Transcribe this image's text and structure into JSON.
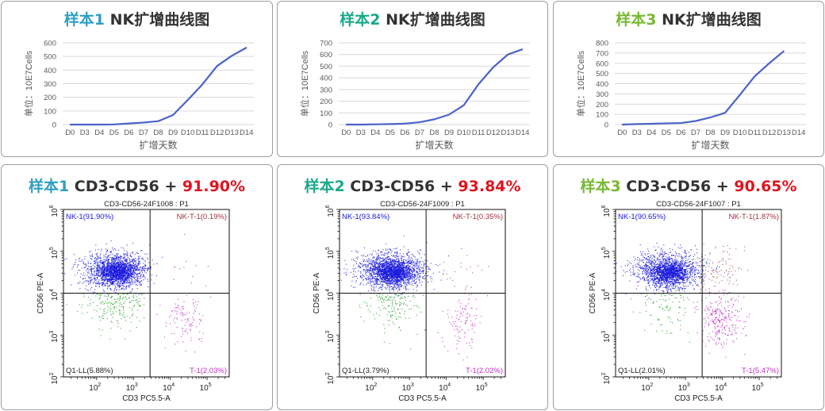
{
  "line_panels": [
    {
      "sample_label": "样本1",
      "title_rest": " NK扩增曲线图",
      "sample_color": "#2e9fc3"
    },
    {
      "sample_label": "样本2",
      "title_rest": " NK扩增曲线图",
      "sample_color": "#1aa88a"
    },
    {
      "sample_label": "样本3",
      "title_rest": " NK扩增曲线图",
      "sample_color": "#78b833"
    }
  ],
  "flow_panels": [
    {
      "sample_label": "样本1",
      "marker_text": " CD3-CD56 + ",
      "percent": "91.90%",
      "sample_color": "#2e9fc3"
    },
    {
      "sample_label": "样本2",
      "marker_text": " CD3-CD56 + ",
      "percent": "93.84%",
      "sample_color": "#1aa88a"
    },
    {
      "sample_label": "样本3",
      "marker_text": " CD3-CD56 + ",
      "percent": "90.65%",
      "sample_color": "#78b833"
    }
  ],
  "colors": {
    "line": "#4a63c8",
    "grid": "#d9d9d9",
    "percent_red": "#e0141e",
    "nk": "#1a1adc",
    "nkt": "#a0323c",
    "t": "#c030c0",
    "ll": "#3aa83a"
  },
  "chart_data": [
    {
      "type": "line",
      "title": "样本1 NK扩增曲线图",
      "xlabel": "扩增天数",
      "ylabel": "单位：10E7Cells",
      "categories": [
        "D0",
        "D3",
        "D4",
        "D5",
        "D6",
        "D7",
        "D8",
        "D9",
        "D10",
        "D11",
        "D12",
        "D13",
        "D14"
      ],
      "values": [
        0,
        0,
        0,
        1,
        8,
        15,
        25,
        70,
        180,
        295,
        430,
        505,
        565
      ],
      "ylim": [
        0,
        600
      ],
      "yticks": [
        0,
        100,
        200,
        300,
        400,
        500,
        600
      ],
      "grid": true
    },
    {
      "type": "line",
      "title": "样本2 NK扩增曲线图",
      "xlabel": "扩增天数",
      "ylabel": "单位：10E7Cells",
      "categories": [
        "D0",
        "D3",
        "D4",
        "D5",
        "D6",
        "D7",
        "D8",
        "D9",
        "D10",
        "D11",
        "D12",
        "D13",
        "D14"
      ],
      "values": [
        0,
        0,
        2,
        4,
        8,
        20,
        45,
        85,
        165,
        345,
        490,
        600,
        645
      ],
      "ylim": [
        0,
        700
      ],
      "yticks": [
        0,
        100,
        200,
        300,
        400,
        500,
        600,
        700
      ],
      "grid": true
    },
    {
      "type": "line",
      "title": "样本3 NK扩增曲线图",
      "xlabel": "扩增天数",
      "ylabel": "单位：10E7Cells",
      "categories": [
        "D0",
        "D3",
        "D4",
        "D5",
        "D6",
        "D7",
        "D8",
        "D9",
        "D10",
        "D11",
        "D12",
        "D13",
        "D14"
      ],
      "values": [
        0,
        5,
        8,
        12,
        15,
        35,
        70,
        115,
        290,
        470,
        600,
        720,
        null
      ],
      "ylim": [
        0,
        800
      ],
      "yticks": [
        0,
        100,
        200,
        300,
        400,
        500,
        600,
        700,
        800
      ],
      "grid": true
    },
    {
      "type": "scatter",
      "title": "CD3-CD56-24F1008 : P1",
      "xlabel": "CD3 PC5.5-A",
      "ylabel": "CD56 PE-A",
      "x_scale": "log",
      "y_scale": "log",
      "x_ticks": [
        "10^2",
        "10^3",
        "10^4",
        "10^5"
      ],
      "y_ticks": [
        "10^2",
        "10^3",
        "10^4",
        "10^5",
        "10^6"
      ],
      "quadrants": [
        {
          "name": "NK-1",
          "percent": "91.90%",
          "position": "top-left"
        },
        {
          "name": "NK-T-1",
          "percent": "0.19%",
          "position": "top-right"
        },
        {
          "name": "Q1-LL",
          "percent": "5.88%",
          "position": "bottom-left"
        },
        {
          "name": "T-1",
          "percent": "2.03%",
          "position": "bottom-right"
        }
      ]
    },
    {
      "type": "scatter",
      "title": "CD3-CD56-24F1009 : P1",
      "xlabel": "CD3 PC5.5-A",
      "ylabel": "CD56 PE-A",
      "x_scale": "log",
      "y_scale": "log",
      "x_ticks": [
        "10^2",
        "10^3",
        "10^4",
        "10^5"
      ],
      "y_ticks": [
        "10^2",
        "10^3",
        "10^4",
        "10^5",
        "10^6"
      ],
      "quadrants": [
        {
          "name": "NK-1",
          "percent": "93.84%",
          "position": "top-left"
        },
        {
          "name": "NK-T-1",
          "percent": "0.35%",
          "position": "top-right"
        },
        {
          "name": "Q1-LL",
          "percent": "3.79%",
          "position": "bottom-left"
        },
        {
          "name": "T-1",
          "percent": "2.02%",
          "position": "bottom-right"
        }
      ]
    },
    {
      "type": "scatter",
      "title": "CD3-CD56-24F1007 : P1",
      "xlabel": "CD3 PC5.5-A",
      "ylabel": "CD56 PE-A",
      "x_scale": "log",
      "y_scale": "log",
      "x_ticks": [
        "10^2",
        "10^3",
        "10^4",
        "10^5"
      ],
      "y_ticks": [
        "10^2",
        "10^3",
        "10^4",
        "10^5",
        "10^6"
      ],
      "quadrants": [
        {
          "name": "NK-1",
          "percent": "90.65%",
          "position": "top-left"
        },
        {
          "name": "NK-T-1",
          "percent": "1.87%",
          "position": "top-right"
        },
        {
          "name": "Q1-LL",
          "percent": "2.01%",
          "position": "bottom-left"
        },
        {
          "name": "T-1",
          "percent": "5.47%",
          "position": "bottom-right"
        }
      ]
    }
  ]
}
